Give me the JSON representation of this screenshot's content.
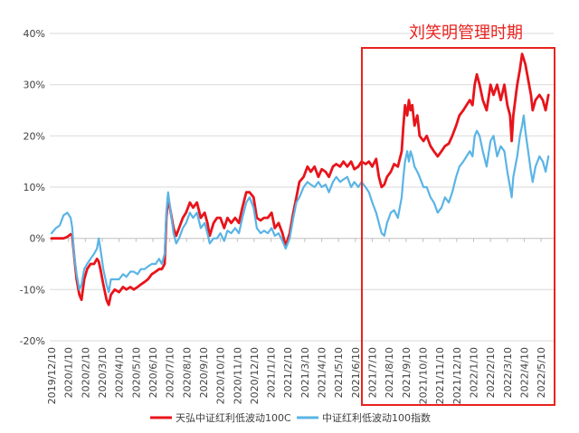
{
  "chart_data": {
    "type": "line",
    "title": "",
    "xlabel": "",
    "ylabel": "",
    "annotation": "刘笑明管理时期",
    "annotation_color": "#e8231f",
    "ylim": [
      -20,
      40
    ],
    "y_ticks": [
      40,
      30,
      20,
      10,
      0,
      -10,
      -20
    ],
    "y_tick_labels": [
      "40%",
      "30%",
      "20%",
      "10%",
      "0%",
      "-10%",
      "-20%"
    ],
    "x_tick_labels": [
      "2019/12/10",
      "2020/1/10",
      "2020/2/10",
      "2020/3/10",
      "2020/4/10",
      "2020/5/10",
      "2020/6/10",
      "2020/7/10",
      "2020/8/10",
      "2020/9/10",
      "2020/10/10",
      "2020/11/10",
      "2020/12/10",
      "2021/1/10",
      "2021/2/10",
      "2021/3/10",
      "2021/4/10",
      "2021/5/10",
      "2021/6/10",
      "2021/7/10",
      "2021/8/10",
      "2021/9/10",
      "2021/10/10",
      "2021/11/10",
      "2021/12/10",
      "2022/1/10",
      "2022/2/10",
      "2022/3/10",
      "2022/4/10",
      "2022/5/10"
    ],
    "grid": true,
    "legend": "bottom",
    "x": [
      "2019/12/10",
      "2019/12/18",
      "2019/12/25",
      "2020/1/1",
      "2020/1/8",
      "2020/1/14",
      "2020/1/17",
      "2020/1/20",
      "2020/1/25",
      "2020/1/30",
      "2020/2/3",
      "2020/2/8",
      "2020/2/13",
      "2020/2/19",
      "2020/2/25",
      "2020/3/1",
      "2020/3/4",
      "2020/3/7",
      "2020/3/12",
      "2020/3/18",
      "2020/3/22",
      "2020/3/26",
      "2020/4/2",
      "2020/4/10",
      "2020/4/17",
      "2020/4/23",
      "2020/4/30",
      "2020/5/6",
      "2020/5/13",
      "2020/5/19",
      "2020/5/26",
      "2020/6/1",
      "2020/6/8",
      "2020/6/15",
      "2020/6/21",
      "2020/6/26",
      "2020/7/1",
      "2020/7/4",
      "2020/7/7",
      "2020/7/12",
      "2020/7/17",
      "2020/7/22",
      "2020/7/27",
      "2020/8/3",
      "2020/8/9",
      "2020/8/16",
      "2020/8/22",
      "2020/8/29",
      "2020/9/5",
      "2020/9/12",
      "2020/9/17",
      "2020/9/21",
      "2020/9/28",
      "2020/10/4",
      "2020/10/10",
      "2020/10/17",
      "2020/10/23",
      "2020/10/30",
      "2020/11/6",
      "2020/11/13",
      "2020/11/19",
      "2020/11/26",
      "2020/12/2",
      "2020/12/9",
      "2020/12/15",
      "2020/12/22",
      "2020/12/28",
      "2021/1/4",
      "2021/1/11",
      "2021/1/17",
      "2021/1/24",
      "2021/1/31",
      "2021/2/6",
      "2021/2/13",
      "2021/2/19",
      "2021/2/24",
      "2021/3/1",
      "2021/3/8",
      "2021/3/15",
      "2021/3/21",
      "2021/3/28",
      "2021/4/4",
      "2021/4/10",
      "2021/4/17",
      "2021/4/23",
      "2021/4/30",
      "2021/5/6",
      "2021/5/13",
      "2021/5/19",
      "2021/5/26",
      "2021/6/2",
      "2021/6/8",
      "2021/6/15",
      "2021/6/21",
      "2021/6/28",
      "2021/7/4",
      "2021/7/10",
      "2021/7/17",
      "2021/7/22",
      "2021/7/27",
      "2021/8/1",
      "2021/8/6",
      "2021/8/13",
      "2021/8/19",
      "2021/8/26",
      "2021/9/2",
      "2021/9/5",
      "2021/9/8",
      "2021/9/12",
      "2021/9/15",
      "2021/9/18",
      "2021/9/21",
      "2021/9/25",
      "2021/9/30",
      "2021/10/4",
      "2021/10/11",
      "2021/10/17",
      "2021/10/24",
      "2021/10/30",
      "2021/11/6",
      "2021/11/13",
      "2021/11/19",
      "2021/11/26",
      "2021/12/2",
      "2021/12/9",
      "2021/12/15",
      "2021/12/22",
      "2021/12/28",
      "2022/1/3",
      "2022/1/8",
      "2022/1/12",
      "2022/1/16",
      "2022/1/21",
      "2022/1/27",
      "2022/2/3",
      "2022/2/10",
      "2022/2/15",
      "2022/2/21",
      "2022/2/27",
      "2022/3/5",
      "2022/3/10",
      "2022/3/15",
      "2022/3/18",
      "2022/3/21",
      "2022/3/28",
      "2022/4/2",
      "2022/4/6",
      "2022/4/9",
      "2022/4/12",
      "2022/4/17",
      "2022/4/22",
      "2022/4/25",
      "2022/4/30",
      "2022/5/7",
      "2022/5/13",
      "2022/5/18",
      "2022/5/23"
    ],
    "series": [
      {
        "name": "天弘中证红利低波动100C",
        "color": "#e8141b",
        "values": [
          0,
          0,
          0,
          0,
          0.3,
          0.8,
          0.5,
          -3,
          -8,
          -11,
          -12,
          -8,
          -6,
          -5,
          -5,
          -4,
          -4.5,
          -6,
          -9,
          -12,
          -13,
          -11,
          -10,
          -10.5,
          -9.5,
          -10,
          -9.5,
          -10,
          -9.5,
          -9,
          -8.5,
          -8,
          -7,
          -6.5,
          -6,
          -6,
          -5,
          4,
          8,
          5,
          2,
          0.5,
          2,
          4,
          5,
          7,
          6,
          7,
          4,
          5,
          3,
          0.5,
          3,
          4,
          4,
          2,
          4,
          3,
          4,
          3,
          6,
          9,
          9,
          8,
          4,
          3.5,
          4,
          4,
          5,
          2,
          3,
          1,
          -1.5,
          1,
          5,
          8,
          11,
          12,
          14,
          13,
          14,
          12,
          13.5,
          13,
          12,
          14,
          14.5,
          14,
          15,
          14,
          15,
          13.5,
          14,
          15,
          14.5,
          15,
          14,
          15.5,
          12,
          10,
          10.5,
          12,
          13,
          14.5,
          14,
          17,
          22,
          26,
          24,
          27,
          25,
          26,
          22,
          24,
          20,
          19,
          20,
          18,
          17,
          16,
          17,
          18,
          18.5,
          20,
          22,
          24,
          25,
          26,
          27,
          26,
          30,
          32,
          30,
          27,
          25,
          30,
          28,
          30,
          27,
          30,
          26,
          24,
          19,
          24,
          30,
          33,
          36,
          35,
          34,
          31,
          28,
          25,
          27,
          28,
          27,
          25,
          28
        ]
      },
      {
        "name": "中证红利低波动100指数",
        "color": "#5ab4e5",
        "values": [
          1,
          2,
          2.5,
          4.5,
          5,
          4,
          2,
          -3,
          -7,
          -10,
          -9,
          -6,
          -5,
          -4,
          -3,
          -2,
          0,
          -2,
          -6,
          -9,
          -10.5,
          -8,
          -8,
          -8,
          -7,
          -7.5,
          -6.5,
          -6.5,
          -7,
          -6,
          -6,
          -5.5,
          -5,
          -5,
          -4,
          -5,
          -3,
          5,
          9,
          5,
          1,
          -1,
          0,
          2,
          3,
          5,
          4,
          5,
          2,
          3,
          1,
          -1,
          0,
          0,
          1,
          -0.5,
          1.5,
          1,
          2,
          1,
          4,
          7,
          8,
          6,
          2,
          1,
          1.5,
          1,
          2,
          0.5,
          1,
          -0.5,
          -2,
          0,
          4,
          7,
          8,
          10,
          11,
          10.5,
          10,
          11,
          10,
          10.5,
          9,
          11,
          12,
          11,
          11.5,
          12,
          10,
          11,
          10,
          11,
          10,
          9,
          7,
          5,
          3,
          1,
          0.5,
          3,
          5,
          5.5,
          4,
          8,
          12,
          15,
          17,
          15,
          17,
          16,
          14,
          13,
          12,
          10,
          10,
          8,
          7,
          5,
          6,
          8,
          7,
          9,
          12,
          14,
          15,
          16,
          17,
          16,
          20,
          21,
          20,
          17,
          14,
          19,
          20,
          16,
          18,
          17,
          13,
          10,
          8,
          12,
          16,
          20,
          22,
          24,
          21,
          17,
          13,
          11,
          14,
          16,
          15,
          13,
          16
        ]
      }
    ]
  }
}
